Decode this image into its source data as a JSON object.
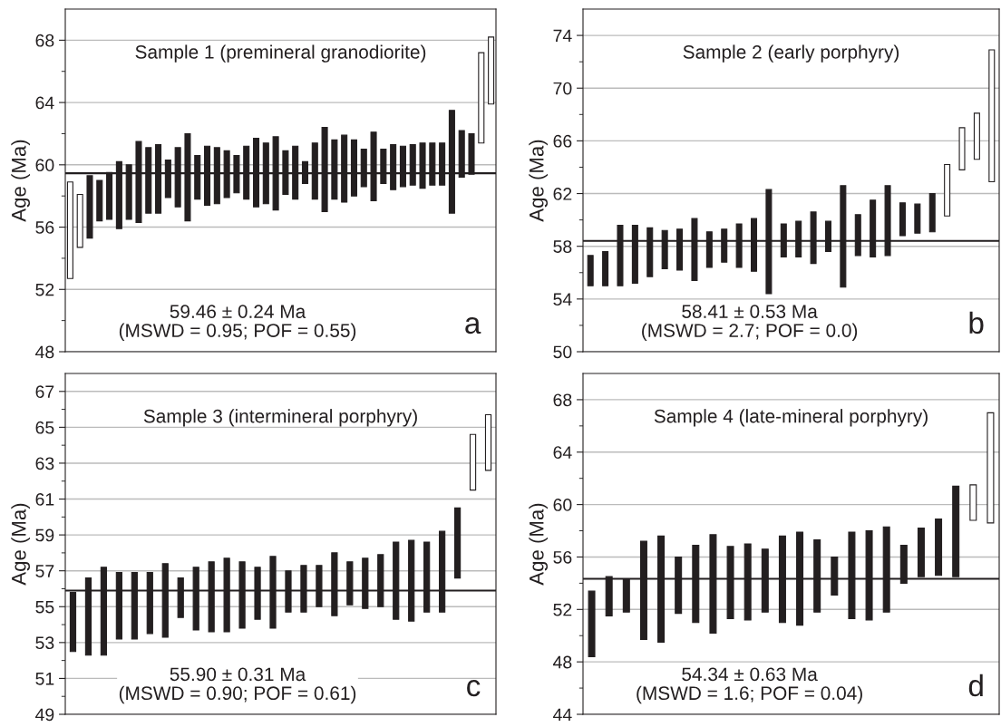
{
  "chart_data": [
    {
      "type": "bar",
      "title": "Sample 1 (premineral granodiorite)",
      "ylabel": "Age (Ma)",
      "categories": [
        null,
        null,
        null,
        null,
        null,
        null,
        null,
        null,
        null,
        null,
        null,
        null,
        null,
        null,
        null,
        null,
        null,
        null,
        null,
        null,
        null,
        null,
        null,
        null,
        null,
        null,
        null,
        null,
        null,
        null,
        null,
        null,
        null,
        null,
        null,
        null,
        null,
        null,
        null,
        null,
        null,
        null,
        null,
        null
      ],
      "base": [
        52.7,
        54.7,
        55.3,
        56.4,
        56.5,
        55.9,
        56.5,
        56.3,
        56.9,
        56.9,
        57.9,
        57.3,
        56.4,
        57.8,
        57.4,
        57.5,
        57.9,
        58.2,
        57.8,
        57.3,
        57.5,
        57.1,
        58.1,
        57.8,
        58.8,
        57.8,
        57.0,
        57.8,
        57.6,
        58.0,
        58.6,
        57.7,
        58.8,
        58.4,
        58.6,
        58.7,
        58.5,
        58.7,
        58.7,
        56.9,
        59.2,
        59.4,
        61.4,
        63.9
      ],
      "values": [
        6.2,
        3.4,
        4.0,
        2.6,
        3.0,
        4.3,
        3.5,
        5.2,
        4.2,
        4.4,
        2.4,
        3.8,
        5.6,
        2.8,
        3.8,
        3.6,
        3.0,
        2.4,
        3.4,
        4.4,
        3.9,
        4.7,
        2.8,
        3.4,
        1.4,
        3.6,
        5.4,
        3.8,
        4.3,
        3.6,
        2.4,
        4.4,
        2.2,
        2.9,
        2.6,
        2.6,
        2.9,
        2.7,
        2.7,
        6.6,
        3.0,
        2.6,
        5.8,
        4.3
      ],
      "colors": [
        "#ffffff",
        "#ffffff",
        "#231f20",
        "#231f20",
        "#231f20",
        "#231f20",
        "#231f20",
        "#231f20",
        "#231f20",
        "#231f20",
        "#231f20",
        "#231f20",
        "#231f20",
        "#231f20",
        "#231f20",
        "#231f20",
        "#231f20",
        "#231f20",
        "#231f20",
        "#231f20",
        "#231f20",
        "#231f20",
        "#231f20",
        "#231f20",
        "#231f20",
        "#231f20",
        "#231f20",
        "#231f20",
        "#231f20",
        "#231f20",
        "#231f20",
        "#231f20",
        "#231f20",
        "#231f20",
        "#231f20",
        "#231f20",
        "#231f20",
        "#231f20",
        "#231f20",
        "#231f20",
        "#231f20",
        "#231f20",
        "#ffffff",
        "#ffffff"
      ],
      "ylim": [
        48,
        70
      ],
      "yticks": [
        48,
        {
          "value": 50,
          "label": null
        },
        52,
        {
          "value": 54,
          "label": null
        },
        56,
        {
          "value": 58,
          "label": null
        },
        60,
        {
          "value": 62,
          "label": null
        },
        64,
        {
          "value": 66,
          "label": null
        },
        68
      ],
      "ref_lines": [
        {
          "axis": "y",
          "value": 59.46,
          "color": "#231f20"
        }
      ],
      "annotations": [
        "59.46 ± 0.24 Ma\n(MSWD = 0.95; POF = 0.55)",
        "a"
      ],
      "grid": "y",
      "tick_labels": "y"
    },
    {
      "type": "bar",
      "title": "Sample 2 (early porphyry)",
      "ylabel": "Age (Ma)",
      "categories": [
        null,
        null,
        null,
        null,
        null,
        null,
        null,
        null,
        null,
        null,
        null,
        null,
        null,
        null,
        null,
        null,
        null,
        null,
        null,
        null,
        null,
        null,
        null,
        null,
        null,
        null,
        null,
        null
      ],
      "base": [
        55.0,
        55.0,
        55.0,
        55.2,
        55.7,
        56.3,
        56.2,
        55.4,
        56.4,
        56.8,
        56.4,
        56.1,
        54.4,
        57.2,
        57.2,
        56.7,
        57.6,
        54.9,
        57.3,
        57.2,
        57.3,
        58.8,
        59.0,
        59.1,
        60.3,
        63.8,
        64.6,
        62.9
      ],
      "values": [
        2.3,
        2.6,
        4.6,
        4.4,
        3.7,
        2.9,
        3.1,
        4.7,
        2.7,
        2.5,
        3.3,
        4.0,
        7.9,
        2.5,
        2.7,
        3.9,
        2.3,
        7.7,
        3.1,
        4.3,
        5.3,
        2.5,
        2.2,
        2.9,
        3.9,
        3.2,
        3.5,
        10.0
      ],
      "colors": [
        "#231f20",
        "#231f20",
        "#231f20",
        "#231f20",
        "#231f20",
        "#231f20",
        "#231f20",
        "#231f20",
        "#231f20",
        "#231f20",
        "#231f20",
        "#231f20",
        "#231f20",
        "#231f20",
        "#231f20",
        "#231f20",
        "#231f20",
        "#231f20",
        "#231f20",
        "#231f20",
        "#231f20",
        "#231f20",
        "#231f20",
        "#231f20",
        "#ffffff",
        "#ffffff",
        "#ffffff",
        "#ffffff"
      ],
      "ylim": [
        50,
        76
      ],
      "yticks": [
        50,
        {
          "value": 52,
          "label": null
        },
        54,
        {
          "value": 56,
          "label": null
        },
        58,
        {
          "value": 60,
          "label": null
        },
        62,
        {
          "value": 64,
          "label": null
        },
        66,
        {
          "value": 68,
          "label": null
        },
        70,
        {
          "value": 72,
          "label": null
        },
        74
      ],
      "ref_lines": [
        {
          "axis": "y",
          "value": 58.41,
          "color": "#231f20"
        }
      ],
      "annotations": [
        "58.41 ± 0.53 Ma\n(MSWD = 2.7; POF = 0.0)",
        "b"
      ],
      "grid": "y",
      "tick_labels": "y"
    },
    {
      "type": "bar",
      "title": "Sample 3 (intermineral porphyry)",
      "ylabel": "Age (Ma)",
      "categories": [
        null,
        null,
        null,
        null,
        null,
        null,
        null,
        null,
        null,
        null,
        null,
        null,
        null,
        null,
        null,
        null,
        null,
        null,
        null,
        null,
        null,
        null,
        null,
        null,
        null,
        null,
        null,
        null
      ],
      "base": [
        52.5,
        52.3,
        52.3,
        53.2,
        53.2,
        53.5,
        53.3,
        54.4,
        53.7,
        53.6,
        53.6,
        53.8,
        54.3,
        53.8,
        54.7,
        54.7,
        55.0,
        54.5,
        55.1,
        54.9,
        55.0,
        54.3,
        54.2,
        54.7,
        54.7,
        56.6,
        61.5,
        62.6
      ],
      "values": [
        3.3,
        4.3,
        4.9,
        3.7,
        3.7,
        3.4,
        4.1,
        2.2,
        3.5,
        3.9,
        4.1,
        3.7,
        2.9,
        4.0,
        2.3,
        2.6,
        2.3,
        3.5,
        2.4,
        2.8,
        2.9,
        4.3,
        4.5,
        3.9,
        4.5,
        3.9,
        3.1,
        3.1
      ],
      "colors": [
        "#231f20",
        "#231f20",
        "#231f20",
        "#231f20",
        "#231f20",
        "#231f20",
        "#231f20",
        "#231f20",
        "#231f20",
        "#231f20",
        "#231f20",
        "#231f20",
        "#231f20",
        "#231f20",
        "#231f20",
        "#231f20",
        "#231f20",
        "#231f20",
        "#231f20",
        "#231f20",
        "#231f20",
        "#231f20",
        "#231f20",
        "#231f20",
        "#231f20",
        "#231f20",
        "#ffffff",
        "#ffffff"
      ],
      "ylim": [
        49,
        68
      ],
      "yticks": [
        49,
        {
          "value": 50,
          "label": null
        },
        51,
        {
          "value": 52,
          "label": null
        },
        53,
        {
          "value": 54,
          "label": null
        },
        55,
        {
          "value": 56,
          "label": null
        },
        57,
        {
          "value": 58,
          "label": null
        },
        59,
        {
          "value": 60,
          "label": null
        },
        61,
        {
          "value": 62,
          "label": null
        },
        63,
        {
          "value": 64,
          "label": null
        },
        65,
        {
          "value": 66,
          "label": null
        },
        67
      ],
      "ref_lines": [
        {
          "axis": "y",
          "value": 55.9,
          "color": "#231f20"
        }
      ],
      "annotations": [
        "55.90 ± 0.31 Ma\n(MSWD = 0.90; POF = 0.61)",
        "c"
      ],
      "grid": "y",
      "tick_labels": "y"
    },
    {
      "type": "bar",
      "title": "Sample 4 (late-mineral porphyry)",
      "ylabel": "Age (Ma)",
      "categories": [
        null,
        null,
        null,
        null,
        null,
        null,
        null,
        null,
        null,
        null,
        null,
        null,
        null,
        null,
        null,
        null,
        null,
        null,
        null,
        null,
        null,
        null,
        null,
        null
      ],
      "base": [
        48.4,
        51.5,
        51.8,
        49.7,
        49.5,
        51.7,
        51.0,
        50.2,
        51.3,
        51.2,
        51.8,
        51.0,
        50.8,
        51.8,
        53.1,
        51.3,
        51.2,
        51.8,
        54.0,
        54.5,
        54.6,
        54.5,
        58.8,
        58.6
      ],
      "values": [
        5.0,
        3.0,
        2.5,
        7.5,
        8.1,
        4.3,
        5.9,
        7.5,
        5.5,
        5.8,
        4.8,
        6.6,
        7.1,
        5.5,
        2.9,
        6.6,
        6.8,
        6.5,
        2.9,
        3.7,
        4.3,
        6.9,
        2.7,
        8.4
      ],
      "colors": [
        "#231f20",
        "#231f20",
        "#231f20",
        "#231f20",
        "#231f20",
        "#231f20",
        "#231f20",
        "#231f20",
        "#231f20",
        "#231f20",
        "#231f20",
        "#231f20",
        "#231f20",
        "#231f20",
        "#231f20",
        "#231f20",
        "#231f20",
        "#231f20",
        "#231f20",
        "#231f20",
        "#231f20",
        "#231f20",
        "#ffffff",
        "#ffffff"
      ],
      "ylim": [
        44,
        70
      ],
      "yticks": [
        44,
        {
          "value": 46,
          "label": null
        },
        48,
        {
          "value": 50,
          "label": null
        },
        52,
        {
          "value": 54,
          "label": null
        },
        56,
        {
          "value": 58,
          "label": null
        },
        60,
        {
          "value": 62,
          "label": null
        },
        64,
        {
          "value": 66,
          "label": null
        },
        68
      ],
      "ref_lines": [
        {
          "axis": "y",
          "value": 54.34,
          "color": "#231f20"
        }
      ],
      "annotations": [
        "54.34 ± 0.63 Ma\n(MSWD = 1.6; POF = 0.04)",
        "d"
      ],
      "grid": "y",
      "tick_labels": "y"
    }
  ]
}
